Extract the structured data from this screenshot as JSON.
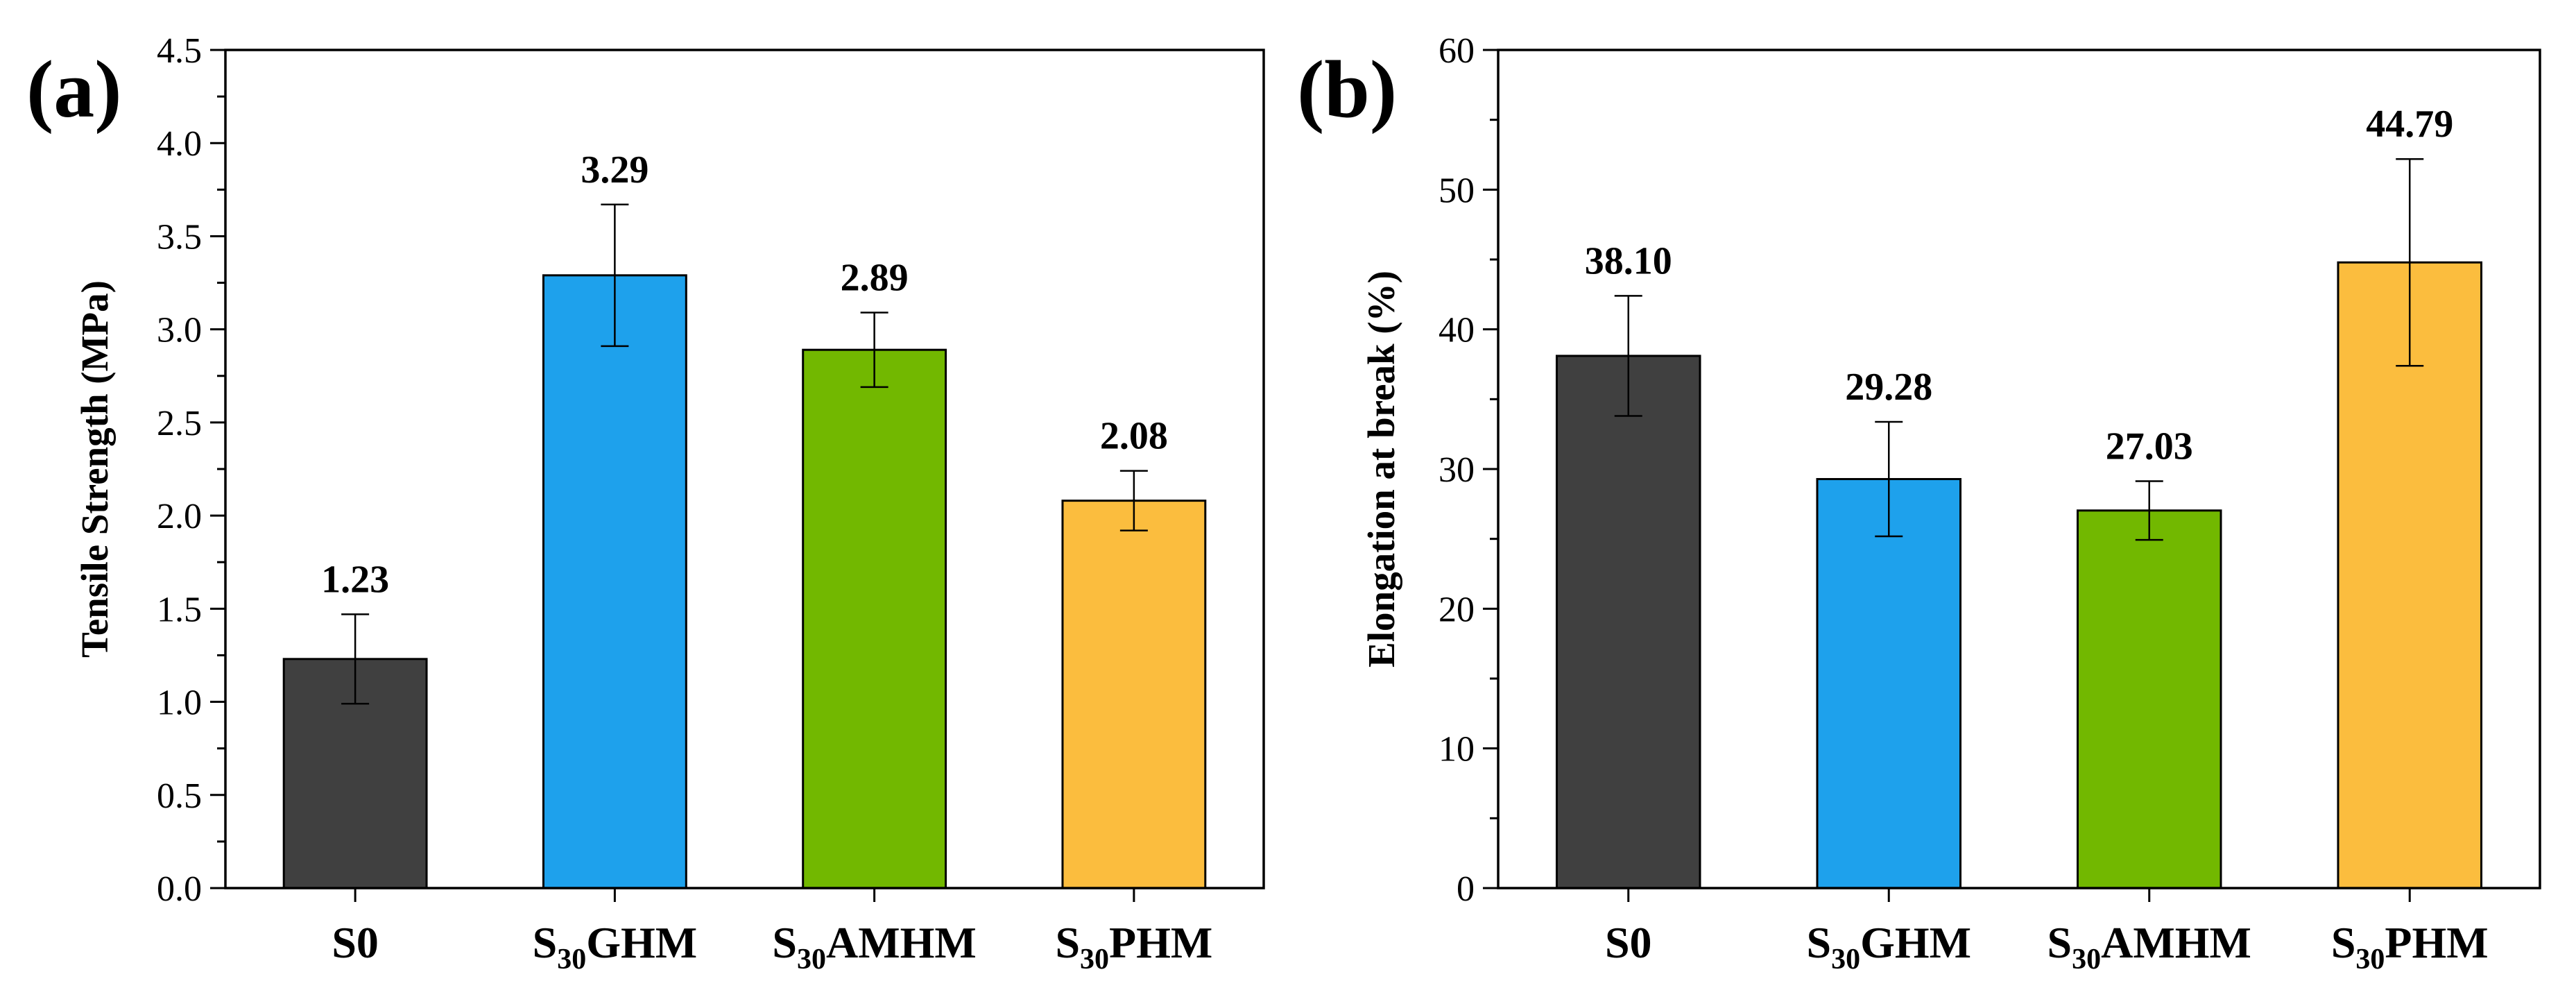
{
  "chart_data": [
    {
      "type": "bar",
      "panel_label": "(a)",
      "title": "",
      "xlabel": "",
      "ylabel": "Tensile Strength (MPa)",
      "ylim": [
        0,
        4.5
      ],
      "ytick_labels": [
        "0.0",
        "0.5",
        "1.0",
        "1.5",
        "2.0",
        "2.5",
        "3.0",
        "3.5",
        "4.0",
        "4.5"
      ],
      "categories": [
        {
          "label": "S0",
          "base": "S0",
          "sub": "",
          "rest": ""
        },
        {
          "label": "S30GHM",
          "base": "S",
          "sub": "30",
          "rest": "GHM"
        },
        {
          "label": "S30AMHM",
          "base": "S",
          "sub": "30",
          "rest": "AMHM"
        },
        {
          "label": "S30PHM",
          "base": "S",
          "sub": "30",
          "rest": "PHM"
        }
      ],
      "values": [
        1.23,
        3.29,
        2.89,
        2.08
      ],
      "value_labels": [
        "1.23",
        "3.29",
        "2.89",
        "2.08"
      ],
      "errors": [
        0.24,
        0.38,
        0.2,
        0.16
      ],
      "colors": [
        "#404040",
        "#1ea1ec",
        "#72b800",
        "#fbbd3e"
      ]
    },
    {
      "type": "bar",
      "panel_label": "(b)",
      "title": "",
      "xlabel": "",
      "ylabel": "Elongation at break (%)",
      "ylim": [
        0,
        60
      ],
      "ytick_labels": [
        "0",
        "10",
        "20",
        "30",
        "40",
        "50",
        "60"
      ],
      "categories": [
        {
          "label": "S0",
          "base": "S0",
          "sub": "",
          "rest": ""
        },
        {
          "label": "S30GHM",
          "base": "S",
          "sub": "30",
          "rest": "GHM"
        },
        {
          "label": "S30AMHM",
          "base": "S",
          "sub": "30",
          "rest": "AMHM"
        },
        {
          "label": "S30PHM",
          "base": "S",
          "sub": "30",
          "rest": "PHM"
        }
      ],
      "values": [
        38.1,
        29.28,
        27.03,
        44.79
      ],
      "value_labels": [
        "38.10",
        "29.28",
        "27.03",
        "44.79"
      ],
      "errors": [
        4.3,
        4.1,
        2.1,
        7.4
      ],
      "colors": [
        "#404040",
        "#1ea1ec",
        "#72b800",
        "#fbbd3e"
      ]
    }
  ]
}
